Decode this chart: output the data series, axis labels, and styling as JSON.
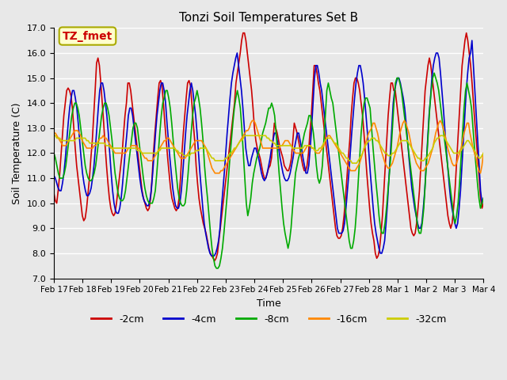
{
  "title": "Tonzi Soil Temperatures Set B",
  "xlabel": "Time",
  "ylabel": "Soil Temperature (C)",
  "annotation": "TZ_fmet",
  "ylim": [
    7.0,
    17.0
  ],
  "yticks": [
    7.0,
    8.0,
    9.0,
    10.0,
    11.0,
    12.0,
    13.0,
    14.0,
    15.0,
    16.0,
    17.0
  ],
  "xtick_labels": [
    "Feb 17",
    "Feb 18",
    "Feb 19",
    "Feb 20",
    "Feb 21",
    "Feb 22",
    "Feb 23",
    "Feb 24",
    "Feb 25",
    "Feb 26",
    "Feb 27",
    "Feb 28",
    "Mar 1",
    "Mar 2",
    "Mar 3",
    "Mar 4"
  ],
  "series_colors": {
    "-2cm": "#cc0000",
    "-4cm": "#0000cc",
    "-8cm": "#00aa00",
    "-16cm": "#ff8800",
    "-32cm": "#cccc00"
  },
  "legend_colors": [
    "#cc0000",
    "#0000cc",
    "#00aa00",
    "#ff8800",
    "#cccc00"
  ],
  "legend_labels": [
    "-2cm",
    "-4cm",
    "-8cm",
    "-16cm",
    "-32cm"
  ],
  "background_color": "#e8e8e8",
  "plot_bg_color": "#e8e8e8",
  "grid_color": "#ffffff",
  "annotation_bg": "#ffffcc",
  "annotation_border": "#aaaa00",
  "annotation_text_color": "#cc0000",
  "series": {
    "-2cm": [
      10.4,
      10.1,
      10.0,
      10.5,
      11.1,
      11.9,
      12.7,
      13.5,
      14.0,
      14.5,
      14.6,
      14.5,
      14.3,
      13.8,
      13.0,
      12.2,
      11.5,
      11.0,
      10.5,
      10.0,
      9.5,
      9.3,
      9.4,
      9.8,
      10.4,
      11.0,
      11.8,
      12.5,
      13.5,
      14.5,
      15.6,
      15.8,
      15.5,
      14.8,
      14.0,
      13.2,
      12.3,
      11.5,
      10.8,
      10.2,
      9.8,
      9.6,
      9.5,
      9.6,
      10.0,
      10.5,
      11.0,
      11.5,
      12.0,
      12.8,
      13.5,
      14.0,
      14.8,
      14.8,
      14.5,
      14.0,
      13.5,
      13.0,
      12.5,
      12.0,
      11.5,
      11.0,
      10.5,
      10.2,
      10.0,
      9.8,
      9.7,
      9.8,
      10.2,
      11.0,
      12.0,
      12.8,
      13.5,
      14.2,
      14.8,
      14.9,
      14.7,
      14.0,
      13.2,
      12.5,
      11.8,
      11.2,
      10.6,
      10.2,
      10.0,
      9.8,
      9.7,
      9.8,
      10.2,
      11.0,
      12.0,
      12.8,
      13.5,
      14.2,
      14.8,
      14.9,
      14.7,
      14.0,
      13.2,
      12.5,
      11.5,
      10.8,
      10.2,
      9.8,
      9.5,
      9.2,
      9.0,
      8.8,
      8.5,
      8.2,
      8.0,
      7.9,
      7.8,
      7.7,
      7.8,
      8.0,
      8.5,
      9.0,
      9.5,
      10.0,
      10.5,
      11.0,
      11.5,
      12.0,
      12.5,
      13.0,
      13.5,
      14.0,
      14.8,
      15.2,
      15.6,
      16.0,
      16.5,
      16.8,
      16.8,
      16.5,
      16.0,
      15.5,
      15.0,
      14.5,
      13.8,
      13.0,
      12.5,
      12.2,
      12.0,
      11.8,
      11.5,
      11.2,
      11.0,
      11.0,
      11.2,
      11.4,
      11.5,
      11.8,
      12.5,
      13.2,
      13.0,
      12.8,
      12.5,
      12.2,
      12.0,
      11.8,
      11.5,
      11.4,
      11.3,
      11.3,
      11.5,
      11.8,
      12.5,
      13.2,
      13.0,
      12.8,
      12.5,
      12.2,
      11.8,
      11.5,
      11.3,
      11.3,
      11.5,
      12.0,
      12.8,
      13.5,
      14.5,
      15.5,
      15.5,
      15.2,
      14.8,
      14.5,
      14.0,
      13.5,
      13.0,
      12.5,
      12.0,
      11.5,
      11.0,
      10.5,
      10.0,
      9.5,
      9.0,
      8.7,
      8.6,
      8.6,
      8.7,
      9.0,
      9.5,
      10.2,
      11.0,
      11.8,
      12.5,
      13.5,
      14.2,
      14.8,
      15.0,
      15.0,
      14.8,
      14.5,
      14.0,
      13.5,
      12.8,
      12.0,
      11.2,
      10.5,
      9.8,
      9.2,
      8.8,
      8.5,
      8.0,
      7.8,
      7.9,
      8.2,
      8.8,
      9.5,
      10.5,
      11.5,
      12.5,
      13.5,
      14.2,
      14.8,
      14.8,
      14.5,
      14.5,
      14.0,
      13.5,
      13.0,
      12.5,
      12.0,
      11.5,
      11.0,
      10.5,
      10.0,
      9.5,
      9.0,
      8.8,
      8.7,
      8.8,
      9.2,
      9.8,
      10.5,
      11.5,
      12.5,
      13.5,
      14.5,
      15.0,
      15.5,
      15.8,
      15.5,
      15.0,
      14.5,
      14.0,
      13.5,
      13.0,
      12.5,
      12.0,
      11.5,
      11.0,
      10.5,
      10.0,
      9.5,
      9.2,
      9.0,
      9.2,
      9.8,
      10.5,
      11.5,
      12.5,
      13.5,
      14.5,
      15.5,
      16.0,
      16.5,
      16.8,
      16.5,
      16.0,
      15.5,
      14.8,
      14.0,
      13.2,
      12.5,
      11.8,
      11.0,
      10.2,
      9.8,
      10.0
    ],
    "-4cm": [
      11.1,
      11.0,
      10.8,
      10.6,
      10.5,
      10.5,
      10.8,
      11.2,
      11.8,
      12.5,
      13.2,
      13.8,
      14.2,
      14.5,
      14.5,
      14.2,
      13.8,
      13.2,
      12.5,
      11.8,
      11.2,
      10.8,
      10.5,
      10.3,
      10.3,
      10.4,
      10.6,
      11.0,
      11.5,
      12.2,
      13.0,
      13.8,
      14.5,
      14.8,
      14.8,
      14.5,
      14.0,
      13.5,
      12.8,
      12.0,
      11.2,
      10.5,
      10.0,
      9.7,
      9.6,
      9.6,
      9.8,
      10.2,
      10.8,
      11.5,
      12.2,
      12.8,
      13.5,
      13.8,
      13.8,
      13.5,
      13.0,
      12.5,
      12.0,
      11.5,
      11.0,
      10.6,
      10.3,
      10.1,
      10.0,
      9.9,
      9.9,
      10.1,
      10.5,
      11.2,
      12.0,
      12.8,
      13.5,
      14.0,
      14.5,
      14.8,
      14.8,
      14.5,
      14.0,
      13.2,
      12.5,
      11.8,
      11.2,
      10.6,
      10.2,
      9.9,
      9.8,
      9.8,
      10.0,
      10.5,
      11.2,
      12.0,
      12.8,
      13.5,
      14.0,
      14.5,
      14.8,
      14.5,
      14.0,
      13.5,
      12.8,
      12.0,
      11.2,
      10.5,
      9.8,
      9.2,
      8.8,
      8.5,
      8.2,
      8.0,
      7.9,
      7.9,
      7.9,
      8.0,
      8.2,
      8.5,
      9.0,
      9.8,
      10.5,
      11.2,
      12.0,
      12.8,
      13.5,
      14.2,
      14.8,
      15.2,
      15.5,
      15.8,
      16.0,
      15.5,
      15.0,
      14.5,
      13.8,
      13.0,
      12.2,
      11.8,
      11.5,
      11.5,
      11.8,
      12.0,
      12.2,
      12.2,
      12.0,
      11.8,
      11.5,
      11.2,
      11.0,
      10.9,
      11.0,
      11.2,
      11.5,
      11.8,
      12.2,
      12.5,
      12.8,
      12.8,
      12.5,
      12.2,
      11.8,
      11.5,
      11.2,
      11.0,
      10.9,
      10.9,
      11.0,
      11.2,
      11.5,
      11.8,
      12.2,
      12.5,
      12.8,
      12.8,
      12.5,
      12.2,
      11.8,
      11.5,
      11.2,
      11.2,
      11.5,
      12.2,
      13.0,
      14.0,
      15.0,
      15.5,
      15.5,
      15.2,
      14.8,
      14.5,
      14.0,
      13.5,
      13.0,
      12.5,
      12.0,
      11.5,
      11.0,
      10.5,
      10.0,
      9.5,
      9.0,
      8.8,
      8.8,
      8.8,
      8.9,
      9.2,
      9.8,
      10.5,
      11.2,
      12.0,
      12.8,
      13.5,
      14.2,
      14.8,
      15.2,
      15.5,
      15.5,
      15.2,
      14.8,
      14.2,
      13.5,
      12.8,
      12.0,
      11.2,
      10.5,
      9.8,
      9.2,
      8.8,
      8.5,
      8.2,
      8.0,
      8.0,
      8.2,
      8.5,
      9.2,
      10.0,
      11.0,
      12.0,
      13.0,
      14.0,
      14.5,
      14.8,
      15.0,
      15.0,
      14.8,
      14.5,
      14.2,
      13.8,
      13.2,
      12.5,
      11.8,
      11.2,
      10.6,
      10.2,
      9.8,
      9.5,
      9.2,
      9.0,
      9.0,
      9.2,
      9.8,
      10.5,
      11.5,
      12.5,
      13.5,
      14.2,
      15.0,
      15.5,
      15.8,
      16.0,
      16.0,
      15.8,
      15.2,
      14.5,
      13.8,
      13.0,
      12.2,
      11.5,
      10.8,
      10.2,
      9.8,
      9.5,
      9.2,
      9.0,
      9.2,
      9.8,
      10.5,
      11.5,
      12.5,
      13.5,
      14.5,
      15.2,
      15.8,
      16.0,
      16.5,
      15.5,
      14.5,
      13.5,
      12.5,
      11.5,
      10.5,
      10.0,
      10.2
    ],
    "-8cm": [
      12.0,
      11.8,
      11.5,
      11.2,
      11.0,
      11.0,
      11.0,
      11.2,
      11.5,
      12.0,
      12.5,
      13.0,
      13.5,
      13.8,
      14.0,
      14.0,
      13.8,
      13.5,
      13.0,
      12.5,
      12.0,
      11.5,
      11.2,
      11.0,
      10.9,
      10.9,
      11.0,
      11.2,
      11.5,
      12.0,
      12.5,
      13.0,
      13.5,
      13.8,
      14.0,
      14.0,
      13.8,
      13.5,
      13.0,
      12.5,
      11.8,
      11.2,
      10.8,
      10.4,
      10.2,
      10.1,
      10.1,
      10.2,
      10.5,
      11.0,
      11.5,
      12.0,
      12.5,
      13.0,
      13.2,
      13.2,
      13.0,
      12.5,
      12.0,
      11.5,
      11.0,
      10.6,
      10.3,
      10.1,
      10.0,
      10.0,
      10.0,
      10.2,
      10.5,
      11.2,
      12.0,
      12.8,
      13.5,
      14.0,
      14.2,
      14.5,
      14.5,
      14.2,
      13.8,
      13.2,
      12.5,
      11.8,
      11.2,
      10.6,
      10.2,
      10.0,
      9.9,
      9.9,
      10.0,
      10.5,
      11.2,
      12.0,
      12.8,
      13.5,
      14.0,
      14.2,
      14.5,
      14.2,
      13.8,
      13.2,
      12.5,
      11.5,
      10.8,
      10.2,
      9.5,
      8.8,
      8.2,
      7.8,
      7.5,
      7.4,
      7.4,
      7.5,
      7.8,
      8.2,
      8.8,
      9.5,
      10.2,
      11.0,
      11.8,
      12.5,
      13.2,
      13.8,
      14.2,
      14.5,
      14.2,
      13.8,
      13.0,
      12.0,
      11.0,
      10.0,
      9.5,
      9.8,
      10.2,
      10.8,
      11.2,
      11.5,
      11.8,
      12.0,
      12.2,
      12.5,
      12.8,
      13.0,
      13.2,
      13.5,
      13.8,
      13.8,
      14.0,
      13.8,
      13.5,
      12.8,
      12.0,
      11.2,
      10.5,
      9.8,
      9.2,
      8.8,
      8.5,
      8.2,
      8.5,
      9.0,
      9.8,
      10.5,
      11.2,
      11.5,
      11.8,
      12.0,
      12.2,
      12.5,
      12.8,
      13.0,
      13.2,
      13.5,
      13.5,
      13.2,
      12.8,
      12.2,
      11.5,
      11.0,
      10.8,
      11.0,
      11.5,
      12.5,
      13.5,
      14.5,
      14.8,
      14.5,
      14.2,
      14.0,
      13.5,
      13.0,
      12.5,
      12.0,
      11.5,
      11.0,
      10.5,
      10.0,
      9.5,
      9.0,
      8.5,
      8.2,
      8.2,
      8.5,
      9.0,
      9.8,
      10.8,
      11.8,
      12.8,
      13.5,
      14.0,
      14.2,
      14.2,
      14.0,
      13.8,
      13.0,
      12.2,
      11.5,
      10.8,
      10.2,
      9.5,
      9.0,
      8.8,
      8.8,
      9.2,
      9.8,
      10.5,
      11.2,
      12.0,
      13.0,
      14.0,
      14.8,
      15.0,
      15.0,
      14.8,
      14.5,
      14.0,
      13.5,
      13.0,
      12.5,
      12.0,
      11.5,
      11.0,
      10.5,
      10.0,
      9.5,
      9.0,
      8.8,
      8.8,
      9.2,
      9.8,
      10.8,
      11.8,
      12.8,
      13.8,
      14.5,
      15.0,
      15.2,
      15.0,
      14.8,
      14.5,
      14.0,
      13.5,
      13.0,
      12.5,
      12.0,
      11.5,
      11.0,
      10.5,
      10.0,
      9.5,
      9.2,
      9.5,
      10.0,
      10.8,
      11.8,
      12.8,
      13.8,
      14.5,
      14.8,
      14.5,
      14.2,
      13.8,
      13.0,
      12.2,
      11.5,
      10.8,
      10.2,
      9.8,
      10.0,
      10.2
    ],
    "-16cm": [
      12.8,
      12.8,
      12.7,
      12.6,
      12.5,
      12.4,
      12.3,
      12.3,
      12.3,
      12.4,
      12.5,
      12.6,
      12.7,
      12.8,
      12.9,
      12.9,
      12.9,
      12.8,
      12.7,
      12.5,
      12.4,
      12.3,
      12.2,
      12.2,
      12.2,
      12.2,
      12.2,
      12.3,
      12.3,
      12.4,
      12.5,
      12.6,
      12.6,
      12.7,
      12.6,
      12.6,
      12.5,
      12.4,
      12.3,
      12.2,
      12.1,
      12.0,
      12.0,
      12.0,
      12.0,
      12.0,
      12.0,
      12.0,
      12.0,
      12.1,
      12.2,
      12.2,
      12.3,
      12.3,
      12.3,
      12.3,
      12.2,
      12.2,
      12.1,
      12.0,
      11.9,
      11.8,
      11.8,
      11.7,
      11.7,
      11.7,
      11.7,
      11.8,
      11.9,
      12.0,
      12.1,
      12.2,
      12.3,
      12.4,
      12.5,
      12.5,
      12.6,
      12.6,
      12.5,
      12.4,
      12.3,
      12.2,
      12.1,
      12.0,
      11.9,
      11.8,
      11.8,
      11.8,
      11.8,
      11.9,
      12.0,
      12.1,
      12.2,
      12.3,
      12.4,
      12.5,
      12.5,
      12.5,
      12.5,
      12.5,
      12.4,
      12.3,
      12.2,
      12.0,
      11.8,
      11.6,
      11.4,
      11.3,
      11.2,
      11.2,
      11.2,
      11.2,
      11.3,
      11.3,
      11.4,
      11.5,
      11.6,
      11.7,
      11.8,
      11.9,
      12.0,
      12.1,
      12.2,
      12.3,
      12.4,
      12.5,
      12.6,
      12.7,
      12.8,
      12.9,
      12.9,
      13.0,
      13.2,
      13.3,
      13.3,
      13.2,
      13.0,
      12.8,
      12.6,
      12.4,
      12.2,
      12.2,
      12.2,
      12.2,
      12.2,
      12.2,
      12.2,
      12.2,
      12.2,
      12.2,
      12.2,
      12.2,
      12.3,
      12.3,
      12.4,
      12.5,
      12.5,
      12.5,
      12.4,
      12.3,
      12.2,
      12.1,
      12.0,
      12.0,
      12.0,
      12.0,
      12.0,
      12.0,
      12.1,
      12.2,
      12.3,
      12.3,
      12.3,
      12.2,
      12.2,
      12.1,
      12.0,
      12.0,
      12.0,
      12.1,
      12.2,
      12.3,
      12.5,
      12.6,
      12.7,
      12.7,
      12.6,
      12.5,
      12.4,
      12.3,
      12.2,
      12.1,
      12.0,
      11.9,
      11.8,
      11.7,
      11.6,
      11.5,
      11.4,
      11.3,
      11.3,
      11.3,
      11.3,
      11.4,
      11.5,
      11.6,
      11.8,
      12.0,
      12.2,
      12.4,
      12.6,
      12.8,
      12.9,
      13.0,
      13.2,
      13.2,
      13.0,
      12.8,
      12.5,
      12.2,
      12.0,
      11.8,
      11.6,
      11.5,
      11.4,
      11.4,
      11.5,
      11.6,
      11.8,
      12.0,
      12.2,
      12.5,
      12.8,
      13.0,
      13.2,
      13.3,
      13.2,
      13.0,
      12.8,
      12.5,
      12.2,
      12.0,
      11.8,
      11.6,
      11.5,
      11.4,
      11.3,
      11.3,
      11.3,
      11.4,
      11.5,
      11.6,
      11.8,
      12.0,
      12.2,
      12.5,
      12.8,
      13.0,
      13.2,
      13.3,
      13.2,
      13.0,
      12.8,
      12.5,
      12.2,
      12.0,
      11.8,
      11.6,
      11.5,
      11.5,
      11.6,
      11.8,
      12.0,
      12.2,
      12.5,
      12.8,
      13.0,
      13.2,
      13.2,
      12.8,
      12.5,
      12.2,
      12.0,
      11.8,
      11.5,
      11.3,
      11.2,
      11.5,
      12.0
    ],
    "-32cm": [
      12.7,
      12.7,
      12.6,
      12.6,
      12.6,
      12.5,
      12.5,
      12.5,
      12.5,
      12.5,
      12.5,
      12.5,
      12.5,
      12.5,
      12.5,
      12.6,
      12.6,
      12.6,
      12.6,
      12.6,
      12.6,
      12.6,
      12.5,
      12.5,
      12.4,
      12.4,
      12.4,
      12.4,
      12.4,
      12.4,
      12.4,
      12.4,
      12.4,
      12.4,
      12.4,
      12.3,
      12.3,
      12.3,
      12.2,
      12.2,
      12.2,
      12.2,
      12.2,
      12.2,
      12.2,
      12.2,
      12.2,
      12.2,
      12.2,
      12.2,
      12.2,
      12.2,
      12.2,
      12.2,
      12.2,
      12.2,
      12.1,
      12.1,
      12.1,
      12.0,
      12.0,
      12.0,
      12.0,
      12.0,
      12.0,
      12.0,
      12.0,
      12.0,
      12.0,
      12.0,
      12.1,
      12.1,
      12.2,
      12.2,
      12.2,
      12.2,
      12.2,
      12.2,
      12.2,
      12.2,
      12.2,
      12.2,
      12.1,
      12.1,
      12.0,
      12.0,
      12.0,
      11.9,
      11.9,
      11.9,
      11.9,
      11.9,
      12.0,
      12.0,
      12.0,
      12.1,
      12.1,
      12.1,
      12.2,
      12.2,
      12.2,
      12.2,
      12.2,
      12.1,
      12.0,
      11.9,
      11.8,
      11.8,
      11.7,
      11.7,
      11.7,
      11.7,
      11.7,
      11.7,
      11.7,
      11.8,
      11.8,
      11.9,
      12.0,
      12.0,
      12.1,
      12.2,
      12.2,
      12.3,
      12.4,
      12.5,
      12.5,
      12.6,
      12.7,
      12.7,
      12.7,
      12.7,
      12.7,
      12.7,
      12.7,
      12.7,
      12.7,
      12.7,
      12.7,
      12.7,
      12.7,
      12.7,
      12.7,
      12.6,
      12.6,
      12.5,
      12.5,
      12.4,
      12.4,
      12.3,
      12.3,
      12.3,
      12.3,
      12.3,
      12.3,
      12.3,
      12.3,
      12.3,
      12.3,
      12.3,
      12.2,
      12.2,
      12.2,
      12.2,
      12.2,
      12.2,
      12.2,
      12.2,
      12.3,
      12.3,
      12.3,
      12.3,
      12.3,
      12.2,
      12.2,
      12.1,
      12.1,
      12.1,
      12.2,
      12.2,
      12.3,
      12.4,
      12.5,
      12.6,
      12.6,
      12.6,
      12.6,
      12.5,
      12.4,
      12.4,
      12.3,
      12.2,
      12.1,
      12.0,
      12.0,
      11.9,
      11.8,
      11.8,
      11.7,
      11.7,
      11.6,
      11.6,
      11.6,
      11.6,
      11.7,
      11.8,
      11.9,
      12.0,
      12.2,
      12.3,
      12.4,
      12.5,
      12.5,
      12.6,
      12.6,
      12.6,
      12.5,
      12.5,
      12.4,
      12.3,
      12.2,
      12.1,
      12.0,
      12.0,
      11.9,
      11.9,
      11.9,
      12.0,
      12.0,
      12.1,
      12.2,
      12.3,
      12.4,
      12.5,
      12.5,
      12.5,
      12.5,
      12.5,
      12.4,
      12.3,
      12.2,
      12.1,
      12.0,
      11.9,
      11.8,
      11.8,
      11.7,
      11.7,
      11.7,
      11.8,
      11.8,
      11.9,
      12.0,
      12.1,
      12.2,
      12.4,
      12.5,
      12.6,
      12.6,
      12.7,
      12.7,
      12.7,
      12.6,
      12.5,
      12.4,
      12.3,
      12.2,
      12.1,
      12.0,
      12.0,
      12.0,
      12.0,
      12.1,
      12.1,
      12.2,
      12.3,
      12.4,
      12.5,
      12.5,
      12.4,
      12.3,
      12.2,
      12.1,
      12.0,
      11.9,
      11.8,
      11.8,
      11.9,
      12.0
    ]
  }
}
